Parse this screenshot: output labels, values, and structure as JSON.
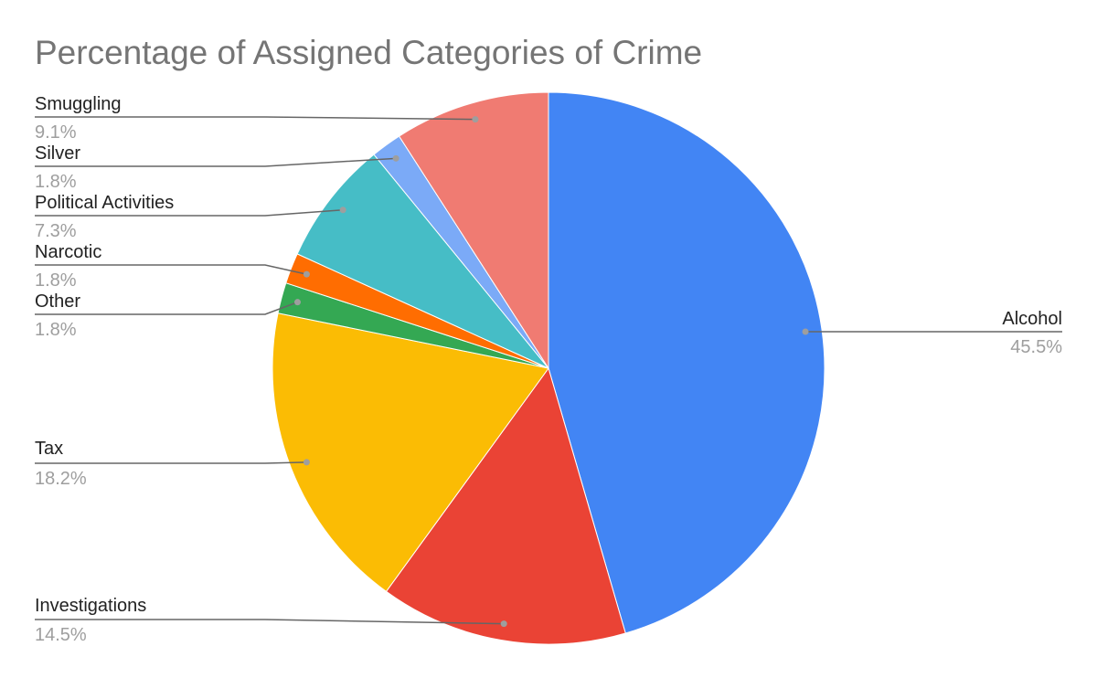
{
  "chart_data": {
    "type": "pie",
    "title": "Percentage of Assigned Categories of Crime",
    "start_angle_deg": 0,
    "direction": "clockwise",
    "slices": [
      {
        "name": "Alcohol",
        "value": 45.5,
        "label": "45.5%",
        "color": "#4285F4"
      },
      {
        "name": "Investigations",
        "value": 14.5,
        "label": "14.5%",
        "color": "#EA4335"
      },
      {
        "name": "Tax",
        "value": 18.2,
        "label": "18.2%",
        "color": "#FBBC04"
      },
      {
        "name": "Other",
        "value": 1.8,
        "label": "1.8%",
        "color": "#34A853"
      },
      {
        "name": "Narcotic",
        "value": 1.8,
        "label": "1.8%",
        "color": "#FF6D01"
      },
      {
        "name": "Political Activities",
        "value": 7.3,
        "label": "7.3%",
        "color": "#46BDC6"
      },
      {
        "name": "Silver",
        "value": 1.8,
        "label": "1.8%",
        "color": "#7BAAF7"
      },
      {
        "name": "Smuggling",
        "value": 9.1,
        "label": "9.1%",
        "color": "#F07B72"
      }
    ]
  }
}
